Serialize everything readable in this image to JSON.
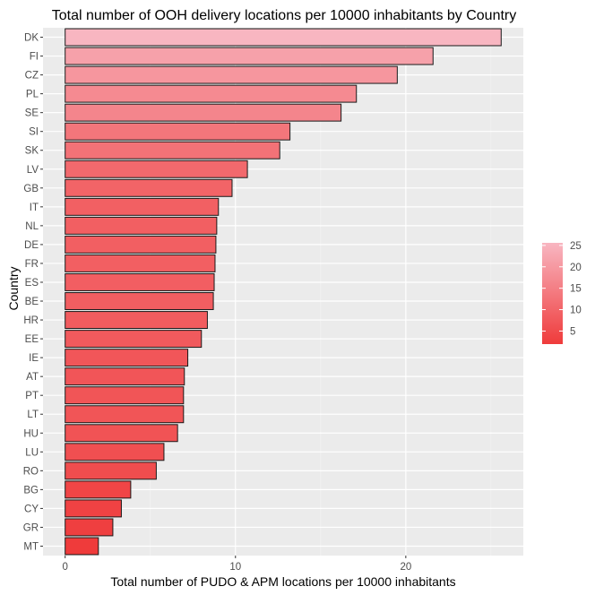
{
  "chart_data": {
    "type": "bar",
    "orientation": "horizontal",
    "title": "Total number of OOH delivery locations per 10000 inhabitants by Country",
    "xlabel": "Total number of PUDO & APM locations per 10000 inhabitants",
    "ylabel": "Country",
    "categories": [
      "DK",
      "FI",
      "CZ",
      "PL",
      "SE",
      "SI",
      "SK",
      "LV",
      "GB",
      "IT",
      "NL",
      "DE",
      "FR",
      "ES",
      "BE",
      "HR",
      "EE",
      "IE",
      "AT",
      "PT",
      "LT",
      "HU",
      "LU",
      "RO",
      "BG",
      "CY",
      "GR",
      "MT"
    ],
    "values": [
      25.6,
      21.6,
      19.5,
      17.1,
      16.2,
      13.2,
      12.6,
      10.7,
      9.8,
      9.0,
      8.9,
      8.85,
      8.8,
      8.75,
      8.7,
      8.35,
      8.0,
      7.2,
      7.0,
      6.95,
      6.95,
      6.6,
      5.8,
      5.35,
      3.85,
      3.3,
      2.8,
      1.95
    ],
    "xlim": [
      -1.3,
      26.9
    ],
    "xticks": [
      0,
      10,
      20
    ],
    "grid": true,
    "legend": {
      "position": "right",
      "type": "colorbar",
      "ticks": [
        5,
        10,
        15,
        20,
        25
      ],
      "range": [
        1.95,
        25.6
      ],
      "color_low": "#ef3b3b",
      "color_high": "#f8b6c1"
    },
    "colors": {
      "panel_bg": "#ebebeb",
      "grid_major": "#ffffff",
      "bar_outline": "#1a1a1a"
    }
  }
}
